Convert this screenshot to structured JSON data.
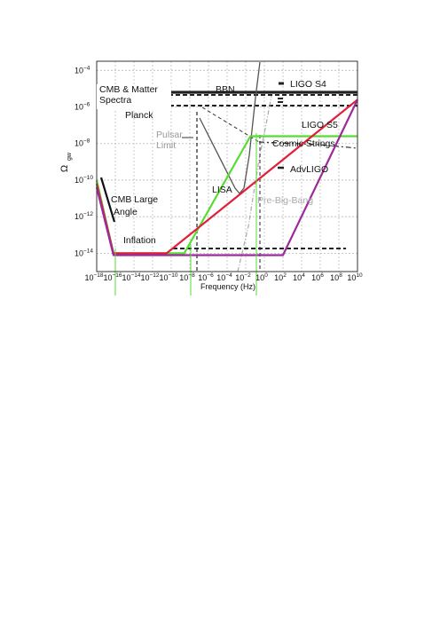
{
  "chart_data": {
    "type": "line",
    "xlabel": "Frequency (Hz)",
    "ylabel_main": "Ω",
    "ylabel_sub": "gw",
    "x_scale": "log",
    "y_scale": "log",
    "xlim_log10": [
      -18,
      10
    ],
    "ylim_log10": [
      -15,
      -3.5
    ],
    "grid": true,
    "x_tick_exponents": [
      "-18",
      "-16",
      "-14",
      "-12",
      "-10",
      "-8",
      "-6",
      "-4",
      "-2",
      "0",
      "2",
      "4",
      "6",
      "8",
      "10"
    ],
    "y_tick_exponents": [
      "-4",
      "-6",
      "-8",
      "-10",
      "-12",
      "-14"
    ],
    "colors": {
      "green": "#55dd33",
      "red": "#e0203a",
      "purple": "#9b2a9b",
      "dark": "#222222",
      "gray": "#555555",
      "lightgray": "#aaaaaa",
      "grid": "#bbbbbb"
    },
    "series": [
      {
        "color_key": "green",
        "x_log10": [
          -18,
          -16.2,
          -8.6,
          -1.5,
          10
        ],
        "y_log10": [
          -10,
          -14,
          -14,
          -7.6,
          -7.6
        ]
      },
      {
        "color_key": "red",
        "x_log10": [
          -18,
          -16.2,
          -10.5,
          10
        ],
        "y_log10": [
          -10.2,
          -14,
          -14,
          -5.6
        ]
      },
      {
        "color_key": "purple",
        "x_log10": [
          -18,
          -16.2,
          2,
          10
        ],
        "y_log10": [
          -10.4,
          -14.1,
          -14.1,
          -5.6
        ]
      }
    ],
    "labels": {
      "cmb_matter": "CMB & Matter",
      "spectra": "Spectra",
      "planck": "Planck",
      "bbn": "BBN",
      "ligo_s4": "LIGO S4",
      "ligo_s5": "LIGO S5",
      "pulsar": "Pulsar",
      "limit": "Limit",
      "cosmic_strings": "Cosmic Strings",
      "advligo": "AdvLIGO",
      "lisa": "LISA",
      "pre_big_bang": "Pre-Big-Bang",
      "cmb_large": "CMB Large",
      "angle": "Angle",
      "inflation": "Inflation"
    }
  }
}
